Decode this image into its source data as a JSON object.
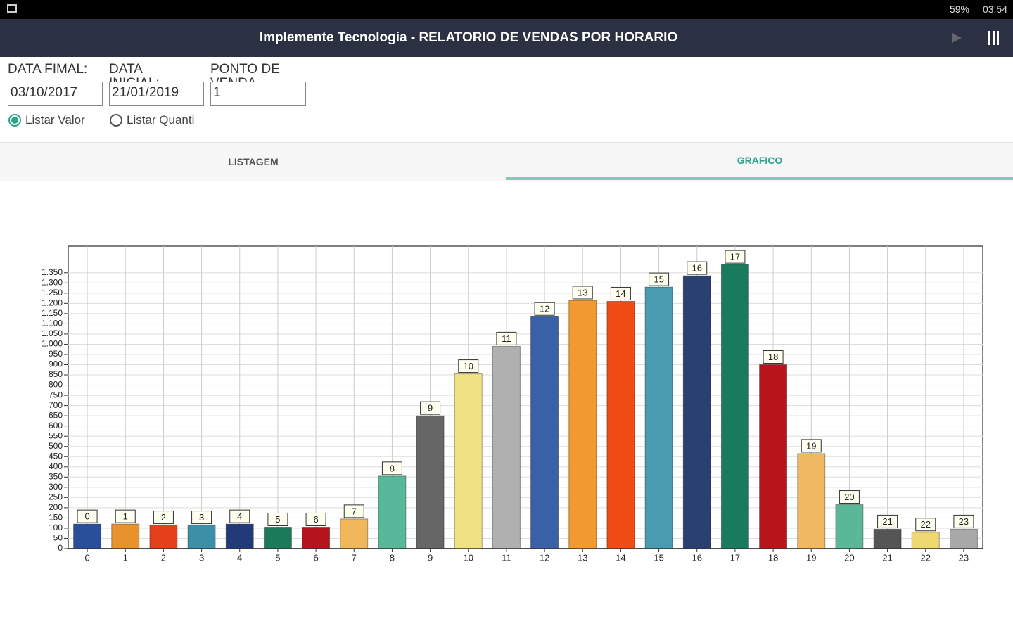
{
  "status_bar": {
    "battery": "59%",
    "time": "03:54"
  },
  "header": {
    "title": "Implemente Tecnologia - RELATORIO DE VENDAS POR HORARIO"
  },
  "form": {
    "fields": [
      {
        "label": "DATA FIMAL:",
        "value": "03/10/2017"
      },
      {
        "label": "DATA INICIAL:",
        "value": "21/01/2019"
      },
      {
        "label": "PONTO DE VENDA",
        "value": "1"
      }
    ],
    "options": [
      {
        "label": "Listar Valor",
        "checked": true
      },
      {
        "label": "Listar Quanti",
        "checked": false
      }
    ]
  },
  "tabs": [
    {
      "label": "LISTAGEM",
      "active": false
    },
    {
      "label": "GRAFICO",
      "active": true
    }
  ],
  "chart_data": {
    "type": "bar",
    "categories": [
      "0",
      "1",
      "2",
      "3",
      "4",
      "5",
      "6",
      "7",
      "8",
      "9",
      "10",
      "11",
      "12",
      "13",
      "14",
      "15",
      "16",
      "17",
      "18",
      "19",
      "20",
      "21",
      "22",
      "23"
    ],
    "values": [
      120,
      120,
      115,
      115,
      120,
      105,
      105,
      145,
      355,
      650,
      855,
      990,
      1135,
      1215,
      1210,
      1280,
      1335,
      1390,
      900,
      465,
      215,
      95,
      80,
      95
    ],
    "colors": [
      "#2a4f9a",
      "#e8922e",
      "#e5401c",
      "#3d8fa8",
      "#223a7a",
      "#1a7a5a",
      "#b5141c",
      "#f0b85a",
      "#5ab89a",
      "#666666",
      "#f0e282",
      "#b0b0b0",
      "#3a60a8",
      "#f29a30",
      "#f04c14",
      "#4a9ab0",
      "#2a4070",
      "#1a7a5e",
      "#b8141c",
      "#f0b860",
      "#5ab898",
      "#555555",
      "#f0d870",
      "#a8a8a8"
    ],
    "ylim": [
      0,
      1480
    ],
    "yticks": [
      0,
      50,
      100,
      150,
      200,
      250,
      300,
      350,
      400,
      450,
      500,
      550,
      600,
      650,
      700,
      750,
      800,
      850,
      900,
      950,
      {
        "value": 1000,
        "label": "1.000"
      },
      {
        "value": 1050,
        "label": "1.050"
      },
      {
        "value": 1100,
        "label": "1.100"
      },
      {
        "value": 1150,
        "label": "1.150"
      },
      {
        "value": 1200,
        "label": "1.200"
      },
      {
        "value": 1250,
        "label": "1.250"
      },
      {
        "value": 1300,
        "label": "1.300"
      },
      {
        "value": 1350,
        "label": "1.350"
      }
    ],
    "grid": true
  }
}
